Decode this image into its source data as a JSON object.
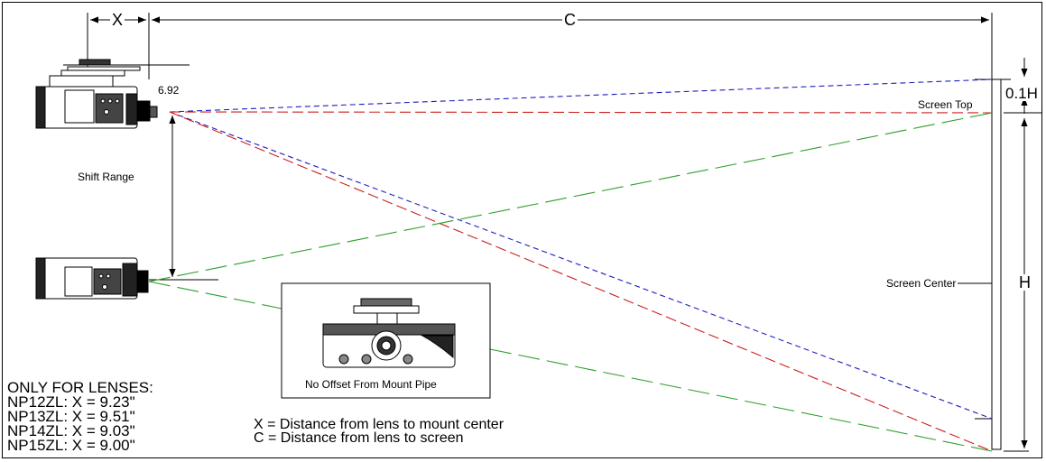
{
  "dimensions": {
    "x_label": "X",
    "c_label": "C",
    "h_label": "H",
    "top_label": "0.1H",
    "offset_value": "6.92"
  },
  "labels": {
    "shift_range": "Shift Range",
    "screen_top": "Screen Top",
    "screen_center": "Screen Center"
  },
  "inset": {
    "caption": "No Offset From Mount Pipe"
  },
  "legend": {
    "x_def": "X = Distance from lens to mount center",
    "c_def": "C = Distance from lens to screen"
  },
  "lenses": {
    "title": "ONLY FOR LENSES:",
    "items": [
      "NP12ZL:  X = 9.23\"",
      "NP13ZL:  X = 9.51\"",
      "NP14ZL:  X = 9.03\"",
      "NP15ZL:  X = 9.00\""
    ]
  },
  "colors": {
    "blue_ray": "#1f1fbf",
    "red_ray": "#cc1f1f",
    "green_ray": "#2e9e2e"
  }
}
